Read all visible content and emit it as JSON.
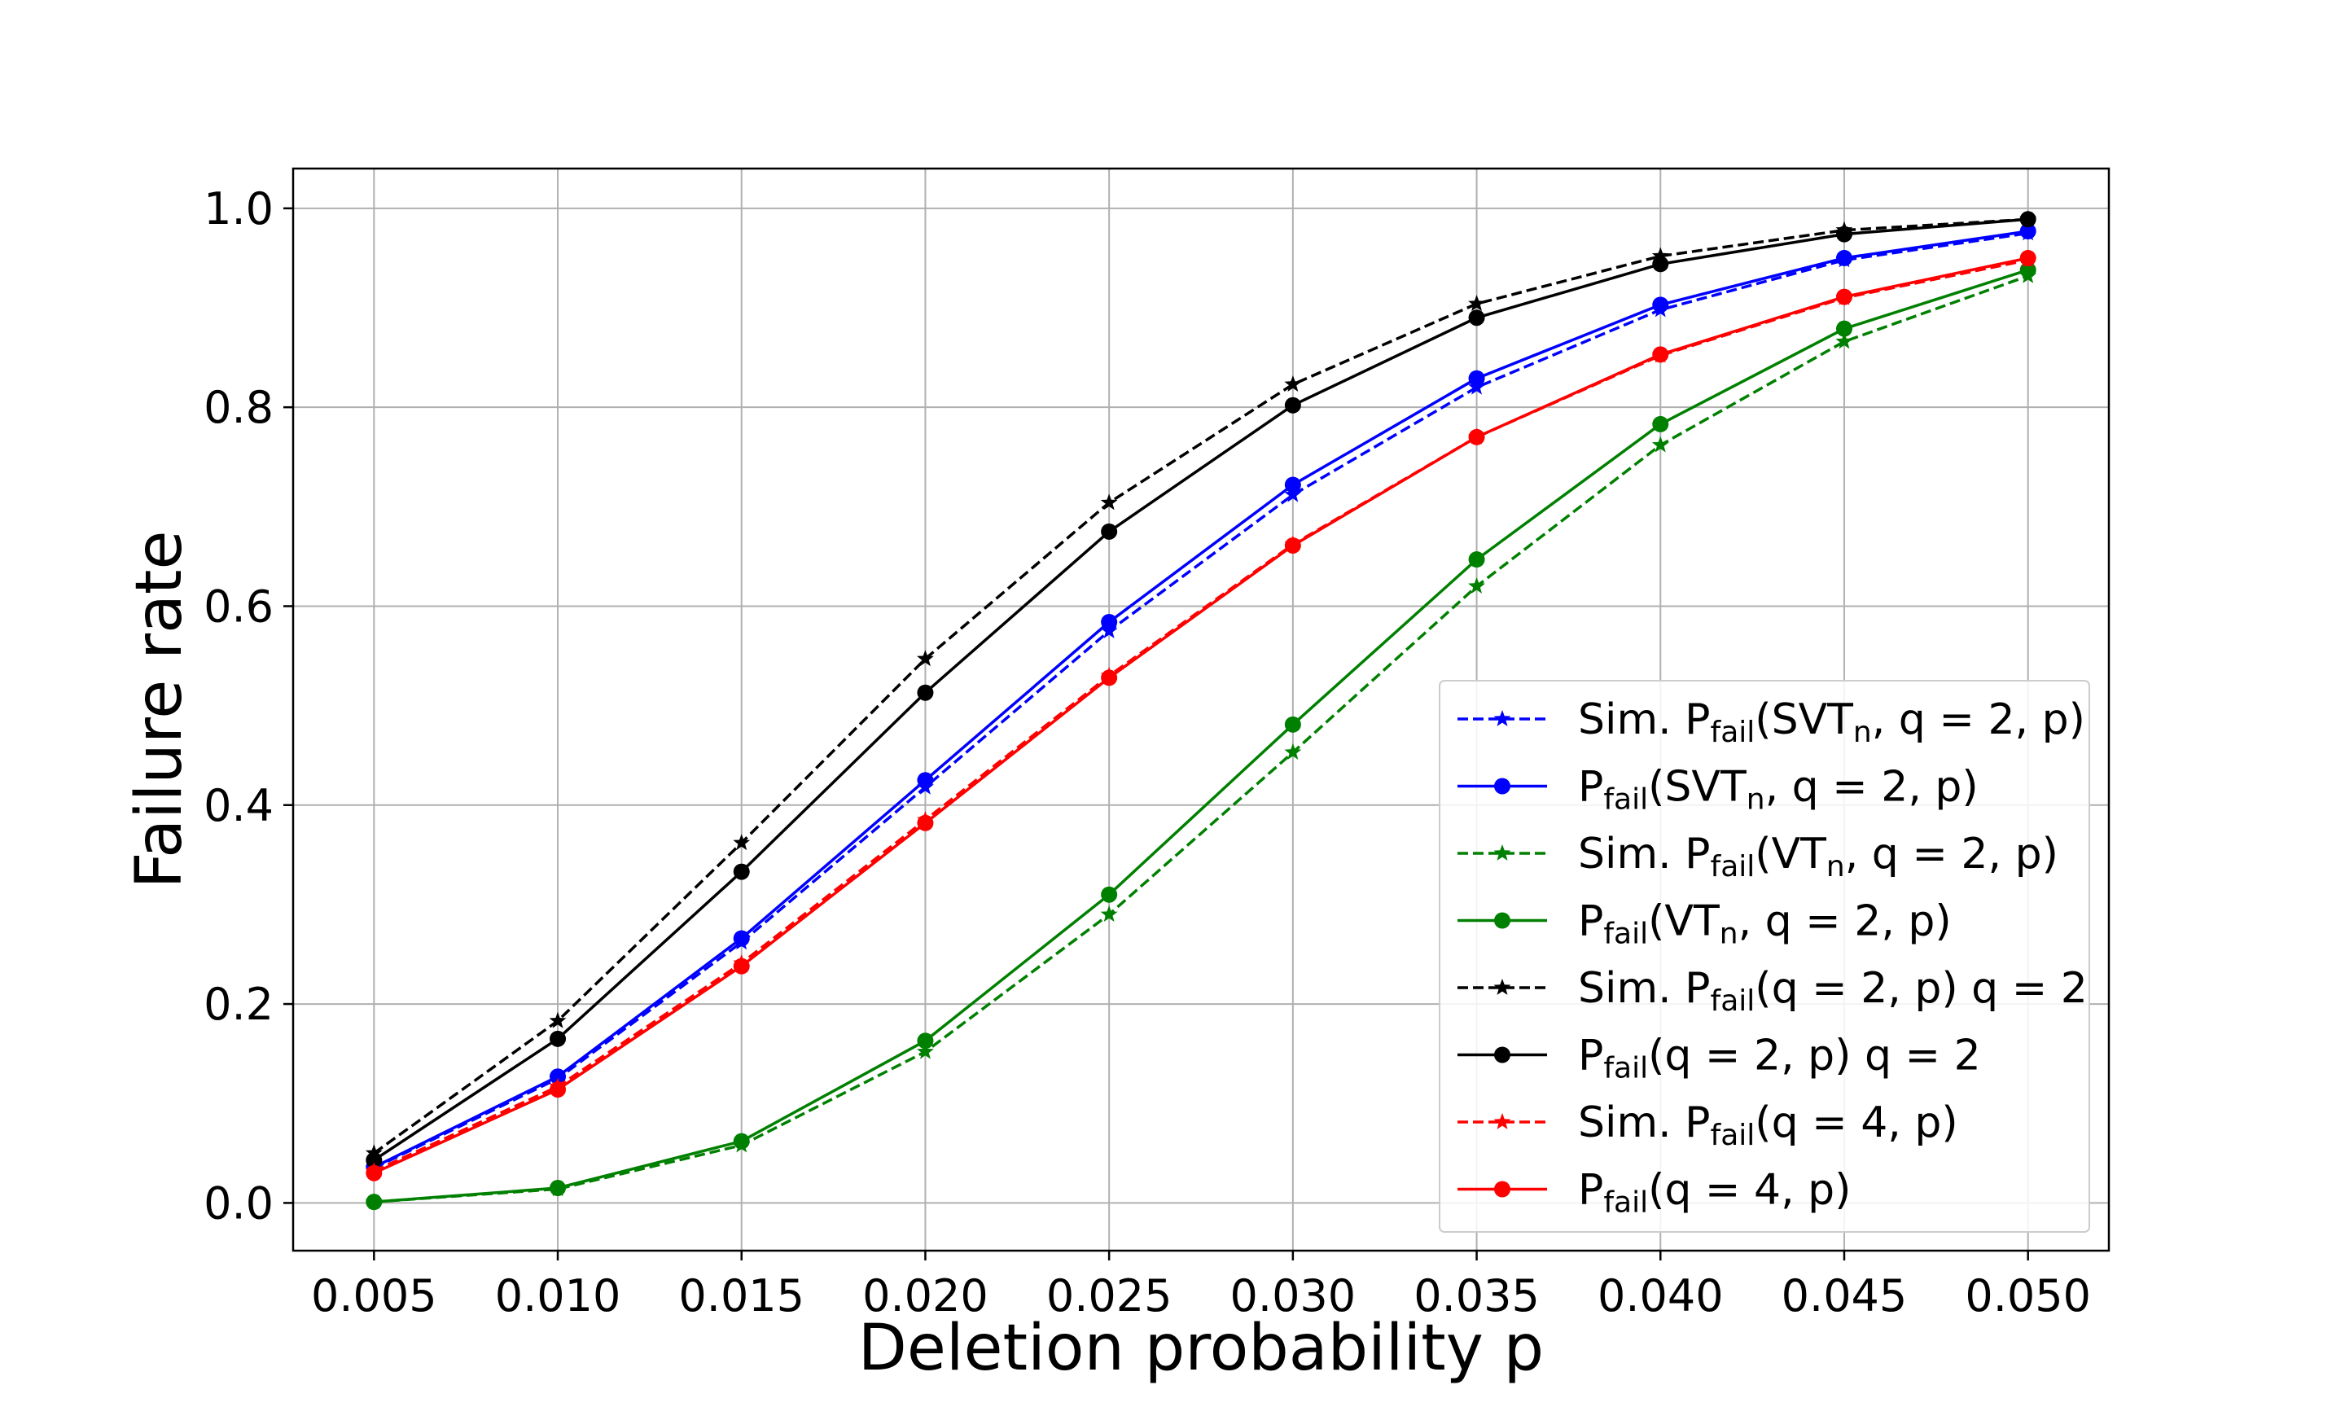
{
  "chart_data": {
    "type": "line",
    "title": "",
    "xlabel": "Deletion probability p",
    "ylabel": "Failure rate",
    "xlim": [
      0.0028,
      0.0522
    ],
    "ylim": [
      -0.048,
      1.04
    ],
    "x": [
      0.005,
      0.01,
      0.015,
      0.02,
      0.025,
      0.03,
      0.035,
      0.04,
      0.045,
      0.05
    ],
    "x_tick_labels": [
      "0.005",
      "0.010",
      "0.015",
      "0.020",
      "0.025",
      "0.030",
      "0.035",
      "0.040",
      "0.045",
      "0.050"
    ],
    "y_ticks": [
      0.0,
      0.2,
      0.4,
      0.6,
      0.8,
      1.0
    ],
    "y_tick_labels": [
      "0.0",
      "0.2",
      "0.4",
      "0.6",
      "0.8",
      "1.0"
    ],
    "grid": true,
    "legend_position": "lower-right",
    "series": [
      {
        "id": "sim-svt",
        "legend_prefix": "Sim. P",
        "legend_sub": "fail",
        "legend_rest": "(SVT",
        "legend_rest_sub": "n",
        "legend_tail": ", q = 2, p)",
        "color": "#0000ff",
        "dashed": true,
        "marker": "star",
        "values": [
          0.035,
          0.125,
          0.262,
          0.418,
          0.575,
          0.712,
          0.82,
          0.898,
          0.948,
          0.975
        ]
      },
      {
        "id": "pfail-svt",
        "legend_prefix": "P",
        "legend_sub": "fail",
        "legend_rest": "(SVT",
        "legend_rest_sub": "n",
        "legend_tail": ", q = 2, p)",
        "color": "#0000ff",
        "dashed": false,
        "marker": "circle",
        "values": [
          0.036,
          0.127,
          0.266,
          0.425,
          0.584,
          0.722,
          0.829,
          0.903,
          0.95,
          0.977
        ]
      },
      {
        "id": "sim-vt",
        "legend_prefix": "Sim. P",
        "legend_sub": "fail",
        "legend_rest": "(VT",
        "legend_rest_sub": "n",
        "legend_tail": ", q = 2, p)",
        "color": "#008000",
        "dashed": true,
        "marker": "star",
        "values": [
          0.001,
          0.014,
          0.058,
          0.152,
          0.29,
          0.453,
          0.62,
          0.762,
          0.866,
          0.932
        ]
      },
      {
        "id": "pfail-vt",
        "legend_prefix": "P",
        "legend_sub": "fail",
        "legend_rest": "(VT",
        "legend_rest_sub": "n",
        "legend_tail": ", q = 2, p)",
        "color": "#008000",
        "dashed": false,
        "marker": "circle",
        "values": [
          0.001,
          0.015,
          0.062,
          0.163,
          0.31,
          0.481,
          0.647,
          0.783,
          0.879,
          0.938
        ]
      },
      {
        "id": "sim-q2",
        "legend_prefix": "Sim. P",
        "legend_sub": "fail",
        "legend_rest": "(q = 2, p) q = 2",
        "legend_rest_sub": "",
        "legend_tail": "",
        "color": "#000000",
        "dashed": true,
        "marker": "star",
        "values": [
          0.05,
          0.183,
          0.362,
          0.547,
          0.704,
          0.823,
          0.904,
          0.952,
          0.978,
          0.989
        ]
      },
      {
        "id": "pfail-q2",
        "legend_prefix": "P",
        "legend_sub": "fail",
        "legend_rest": "(q = 2, p) q = 2",
        "legend_rest_sub": "",
        "legend_tail": "",
        "color": "#000000",
        "dashed": false,
        "marker": "circle",
        "values": [
          0.043,
          0.165,
          0.333,
          0.513,
          0.675,
          0.802,
          0.89,
          0.944,
          0.974,
          0.989
        ]
      },
      {
        "id": "sim-q4",
        "legend_prefix": "Sim. P",
        "legend_sub": "fail",
        "legend_rest": "(q = 4, p)",
        "legend_rest_sub": "",
        "legend_tail": "",
        "color": "#ff0000",
        "dashed": true,
        "marker": "star",
        "values": [
          0.032,
          0.117,
          0.241,
          0.385,
          0.53,
          0.662,
          0.77,
          0.852,
          0.91,
          0.948
        ]
      },
      {
        "id": "pfail-q4",
        "legend_prefix": "P",
        "legend_sub": "fail",
        "legend_rest": "(q = 4, p)",
        "legend_rest_sub": "",
        "legend_tail": "",
        "color": "#ff0000",
        "dashed": false,
        "marker": "circle",
        "values": [
          0.03,
          0.114,
          0.238,
          0.382,
          0.528,
          0.661,
          0.77,
          0.853,
          0.911,
          0.95
        ]
      }
    ]
  }
}
